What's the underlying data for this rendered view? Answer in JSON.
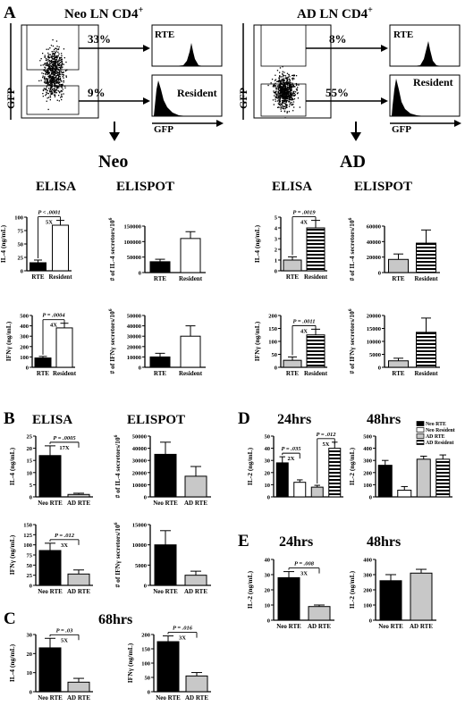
{
  "panels": {
    "A": "A",
    "B": "B",
    "C": "C",
    "D": "D",
    "E": "E"
  },
  "flow": {
    "neo": {
      "title": "Neo LN CD4",
      "sup": "+",
      "pct_top": "33%",
      "pct_bottom": "9%",
      "rte": "RTE",
      "resident": "Resident",
      "gfp_y": "GFP",
      "gfp_x": "GFP"
    },
    "ad": {
      "title": "AD LN CD4",
      "sup": "+",
      "pct_top": "8%",
      "pct_bottom": "55%",
      "rte": "RTE",
      "resident": "Resident",
      "gfp_y": "GFP",
      "gfp_x": "GFP"
    }
  },
  "headings": {
    "neo": "Neo",
    "ad": "AD",
    "elisa": "ELISA",
    "elispot": "ELISPOT",
    "h24": "24hrs",
    "h48": "48hrs",
    "h68": "68hrs"
  },
  "colors": {
    "black": "#000000",
    "gray": "#c8c8c8",
    "light": "#e4e4e4",
    "white": "#ffffff"
  },
  "chart_data": [
    {
      "id": "A-neo-elisa-il4",
      "type": "bar",
      "categories": [
        "RTE",
        "Resident"
      ],
      "values": [
        15,
        85
      ],
      "errors": [
        5,
        9
      ],
      "fills": [
        "black",
        "white"
      ],
      "ylabel": "IL-4 (ng/mL)",
      "ylim": [
        0,
        100
      ],
      "ticks": [
        "0",
        "25",
        "50",
        "75",
        "100"
      ],
      "annotations": [
        "P < .0001",
        "5X"
      ]
    },
    {
      "id": "A-neo-elispot-il4",
      "type": "bar",
      "categories": [
        "RTE",
        "Resident"
      ],
      "values": [
        35000,
        110000
      ],
      "errors": [
        8000,
        22000
      ],
      "fills": [
        "black",
        "white"
      ],
      "ylabel": "# of IL-4 secretors/10",
      "ylabel_sup": "6",
      "ylim": [
        0,
        150000
      ],
      "ticks": [
        "0",
        "50000",
        "100000",
        "150000"
      ]
    },
    {
      "id": "A-ad-elisa-il4",
      "type": "bar",
      "categories": [
        "RTE",
        "Resident"
      ],
      "values": [
        1.0,
        4.0
      ],
      "errors": [
        0.3,
        0.7
      ],
      "fills": [
        "gray",
        "stripe"
      ],
      "ylabel": "IL-4 (ng/mL)",
      "ylim": [
        0,
        5
      ],
      "ticks": [
        "0",
        "1",
        "2",
        "3",
        "4",
        "5"
      ],
      "annotations": [
        "P = .0019",
        "4X"
      ]
    },
    {
      "id": "A-ad-elispot-il4",
      "type": "bar",
      "categories": [
        "RTE",
        "Resident"
      ],
      "values": [
        17000,
        38000
      ],
      "errors": [
        7000,
        17000
      ],
      "fills": [
        "gray",
        "stripe"
      ],
      "ylabel": "# of IL-4 secretors/10",
      "ylabel_sup": "6",
      "ylim": [
        0,
        60000
      ],
      "ticks": [
        "0",
        "20000",
        "40000",
        "60000"
      ]
    },
    {
      "id": "A-neo-elisa-ifng",
      "type": "bar",
      "categories": [
        "RTE",
        "Resident"
      ],
      "values": [
        90,
        380
      ],
      "errors": [
        15,
        45
      ],
      "fills": [
        "black",
        "white"
      ],
      "ylabel": "IFNγ (ng/mL)",
      "ylim": [
        0,
        500
      ],
      "ticks": [
        "0",
        "100",
        "200",
        "300",
        "400",
        "500"
      ],
      "annotations": [
        "P = .0004",
        "4X"
      ]
    },
    {
      "id": "A-neo-elispot-ifng",
      "type": "bar",
      "categories": [
        "RTE",
        "Resident"
      ],
      "values": [
        10000,
        30000
      ],
      "errors": [
        3500,
        10000
      ],
      "fills": [
        "black",
        "white"
      ],
      "ylabel": "# of IFNγ secretors/10",
      "ylabel_sup": "6",
      "ylim": [
        0,
        50000
      ],
      "ticks": [
        "0",
        "10000",
        "20000",
        "30000",
        "40000",
        "50000"
      ]
    },
    {
      "id": "A-ad-elisa-ifng",
      "type": "bar",
      "categories": [
        "RTE",
        "Resident"
      ],
      "values": [
        27,
        125
      ],
      "errors": [
        13,
        22
      ],
      "fills": [
        "gray",
        "stripe"
      ],
      "ylabel": "IFNγ (ng/mL)",
      "ylim": [
        0,
        200
      ],
      "ticks": [
        "0",
        "50",
        "100",
        "150",
        "200"
      ],
      "annotations": [
        "P = .0011",
        "4X"
      ]
    },
    {
      "id": "A-ad-elispot-ifng",
      "type": "bar",
      "categories": [
        "RTE",
        "Resident"
      ],
      "values": [
        2500,
        13500
      ],
      "errors": [
        1000,
        5500
      ],
      "fills": [
        "gray",
        "stripe"
      ],
      "ylabel": "# of IFNγ secretors/10",
      "ylabel_sup": "6",
      "ylim": [
        0,
        20000
      ],
      "ticks": [
        "0",
        "5000",
        "10000",
        "15000",
        "20000"
      ]
    },
    {
      "id": "B-elisa-il4",
      "type": "bar",
      "categories": [
        "Neo RTE",
        "AD RTE"
      ],
      "values": [
        17,
        1
      ],
      "errors": [
        4,
        0.5
      ],
      "fills": [
        "black",
        "gray"
      ],
      "ylabel": "IL-4 (ng/mL)",
      "ylim": [
        0,
        25
      ],
      "ticks": [
        "0",
        "5",
        "10",
        "15",
        "20",
        "25"
      ],
      "annotations": [
        "P = .0005",
        "17X"
      ]
    },
    {
      "id": "B-elispot-il4",
      "type": "bar",
      "categories": [
        "Neo RTE",
        "AD RTE"
      ],
      "values": [
        35000,
        17000
      ],
      "errors": [
        10000,
        8000
      ],
      "fills": [
        "black",
        "gray"
      ],
      "ylabel": "# of IL-4 secretors/10",
      "ylabel_sup": "6",
      "ylim": [
        0,
        50000
      ],
      "ticks": [
        "0",
        "10000",
        "20000",
        "30000",
        "40000",
        "50000"
      ]
    },
    {
      "id": "B-elisa-ifng",
      "type": "bar",
      "categories": [
        "Neo RTE",
        "AD RTE"
      ],
      "values": [
        86,
        28
      ],
      "errors": [
        18,
        10
      ],
      "fills": [
        "black",
        "gray"
      ],
      "ylabel": "IFNγ (ng/mL)",
      "ylim": [
        0,
        150
      ],
      "ticks": [
        "0",
        "25",
        "50",
        "75",
        "100",
        "125",
        "150"
      ],
      "annotations": [
        "P = .012",
        "3X"
      ]
    },
    {
      "id": "B-elispot-ifng",
      "type": "bar",
      "categories": [
        "Neo RTE",
        "AD RTE"
      ],
      "values": [
        10000,
        2500
      ],
      "errors": [
        3500,
        1000
      ],
      "fills": [
        "black",
        "gray"
      ],
      "ylabel": "# of IFNγ secretors/10",
      "ylabel_sup": "6",
      "ylim": [
        0,
        15000
      ],
      "ticks": [
        "0",
        "5000",
        "10000",
        "15000"
      ]
    },
    {
      "id": "C-il4",
      "type": "bar",
      "categories": [
        "Neo RTE",
        "AD RTE"
      ],
      "values": [
        23,
        5
      ],
      "errors": [
        5,
        2
      ],
      "fills": [
        "black",
        "gray"
      ],
      "ylabel": "IL-4 (ng/mL)",
      "ylim": [
        0,
        30
      ],
      "ticks": [
        "0",
        "10",
        "20",
        "30"
      ],
      "annotations": [
        "P = .03",
        "5X"
      ]
    },
    {
      "id": "C-ifng",
      "type": "bar",
      "categories": [
        "Neo RTE",
        "AD RTE"
      ],
      "values": [
        175,
        55
      ],
      "errors": [
        20,
        12
      ],
      "fills": [
        "black",
        "gray"
      ],
      "ylabel": "IFNγ (ng/mL)",
      "ylim": [
        0,
        200
      ],
      "ticks": [
        "0",
        "50",
        "100",
        "150",
        "200"
      ],
      "annotations": [
        "P = .016",
        "3X"
      ]
    },
    {
      "id": "D-24hrs",
      "type": "bar",
      "categories": [
        "Neo RTE",
        "Neo Resident",
        "AD RTE",
        "AD Resident"
      ],
      "values": [
        28,
        12,
        8,
        40
      ],
      "errors": [
        5,
        2,
        1.5,
        5
      ],
      "fills": [
        "black",
        "white",
        "gray",
        "stripe"
      ],
      "ylabel": "IL-2 (ng/mL)",
      "ylim": [
        0,
        50
      ],
      "ticks": [
        "0",
        "10",
        "20",
        "30",
        "40",
        "50"
      ],
      "annotations": [
        "P = .035",
        "2X",
        "P = .012",
        "5X"
      ]
    },
    {
      "id": "D-48hrs",
      "type": "bar",
      "categories": [
        "Neo RTE",
        "Neo Resident",
        "AD RTE",
        "AD Resident"
      ],
      "values": [
        260,
        55,
        310,
        310
      ],
      "errors": [
        40,
        30,
        25,
        35
      ],
      "fills": [
        "black",
        "white",
        "gray",
        "stripe"
      ],
      "ylabel": "IL-2 (ng/mL)",
      "ylim": [
        0,
        500
      ],
      "ticks": [
        "0",
        "100",
        "200",
        "300",
        "400",
        "500"
      ],
      "legend": [
        "Neo RTE",
        "Neo Resident",
        "AD RTE",
        "AD Resident"
      ]
    },
    {
      "id": "E-24hrs",
      "type": "bar",
      "categories": [
        "Neo RTE",
        "AD RTE"
      ],
      "values": [
        28,
        9
      ],
      "errors": [
        4,
        1
      ],
      "fills": [
        "black",
        "gray"
      ],
      "ylabel": "IL-2 (ng/mL)",
      "ylim": [
        0,
        40
      ],
      "ticks": [
        "0",
        "10",
        "20",
        "30",
        "40"
      ],
      "annotations": [
        "P = .008",
        "3X"
      ]
    },
    {
      "id": "E-48hrs",
      "type": "bar",
      "categories": [
        "Neo RTE",
        "AD RTE"
      ],
      "values": [
        260,
        310
      ],
      "errors": [
        40,
        25
      ],
      "fills": [
        "black",
        "gray"
      ],
      "ylabel": "IL-2 (ng/mL)",
      "ylim": [
        0,
        400
      ],
      "ticks": [
        "0",
        "100",
        "200",
        "300",
        "400"
      ]
    }
  ]
}
